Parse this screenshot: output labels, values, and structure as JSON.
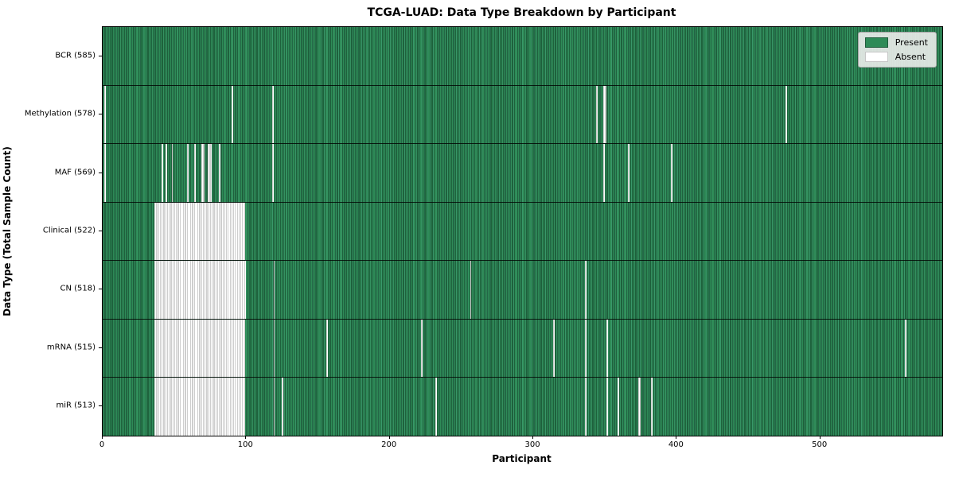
{
  "title": "TCGA-LUAD: Data Type Breakdown by Participant",
  "colors": {
    "present": "#2e8b57",
    "absent": "#ffffff",
    "cell_edge": "#123b24",
    "absent_edge": "#9d9d9d",
    "legend_background": "#e8eae8",
    "axis": "#000000"
  },
  "legend": {
    "present_label": "Present",
    "absent_label": "Absent"
  },
  "chart_data": {
    "type": "heatmap",
    "title": "TCGA-LUAD: Data Type Breakdown by Participant",
    "xlabel": "Participant",
    "ylabel": "Data Type (Total Sample Count)",
    "legend_entries": [
      "Present",
      "Absent"
    ],
    "legend_position": "upper right",
    "grid": false,
    "x_range": [
      0,
      585
    ],
    "x_ticks": [
      0,
      100,
      200,
      300,
      400,
      500
    ],
    "n_participants": 585,
    "absent_ranges_format": "[start_participant_index, count_of_absent_participants]",
    "rows": [
      {
        "data_type": "BCR",
        "label": "BCR (585)",
        "present_count": 585,
        "absent_count": 0,
        "absent_ranges": []
      },
      {
        "data_type": "Methylation",
        "label": "Methylation (578)",
        "present_count": 578,
        "absent_count": 7,
        "absent_ranges": [
          [
            1,
            1
          ],
          [
            90,
            1
          ],
          [
            118,
            1
          ],
          [
            344,
            1
          ],
          [
            349,
            2
          ],
          [
            476,
            1
          ]
        ]
      },
      {
        "data_type": "MAF",
        "label": "MAF (569)",
        "present_count": 569,
        "absent_count": 16,
        "absent_ranges": [
          [
            1,
            1
          ],
          [
            41,
            1
          ],
          [
            44,
            1
          ],
          [
            48,
            1
          ],
          [
            59,
            1
          ],
          [
            64,
            1
          ],
          [
            69,
            2
          ],
          [
            73,
            3
          ],
          [
            81,
            1
          ],
          [
            118,
            1
          ],
          [
            349,
            1
          ],
          [
            366,
            1
          ],
          [
            396,
            1
          ]
        ]
      },
      {
        "data_type": "Clinical",
        "label": "Clinical (522)",
        "present_count": 522,
        "absent_count": 63,
        "absent_ranges": [
          [
            36,
            63
          ]
        ]
      },
      {
        "data_type": "CN",
        "label": "CN (518)",
        "present_count": 518,
        "absent_count": 67,
        "absent_ranges": [
          [
            36,
            64
          ],
          [
            119,
            1
          ],
          [
            256,
            1
          ],
          [
            336,
            1
          ]
        ]
      },
      {
        "data_type": "mRNA",
        "label": "mRNA (515)",
        "present_count": 515,
        "absent_count": 70,
        "absent_ranges": [
          [
            36,
            63
          ],
          [
            119,
            1
          ],
          [
            156,
            1
          ],
          [
            222,
            1
          ],
          [
            314,
            1
          ],
          [
            336,
            1
          ],
          [
            351,
            1
          ],
          [
            559,
            1
          ]
        ]
      },
      {
        "data_type": "miR",
        "label": "miR (513)",
        "present_count": 513,
        "absent_count": 72,
        "absent_ranges": [
          [
            36,
            63
          ],
          [
            119,
            1
          ],
          [
            125,
            1
          ],
          [
            232,
            1
          ],
          [
            336,
            1
          ],
          [
            351,
            1
          ],
          [
            359,
            1
          ],
          [
            373,
            2
          ],
          [
            382,
            1
          ]
        ]
      }
    ]
  }
}
